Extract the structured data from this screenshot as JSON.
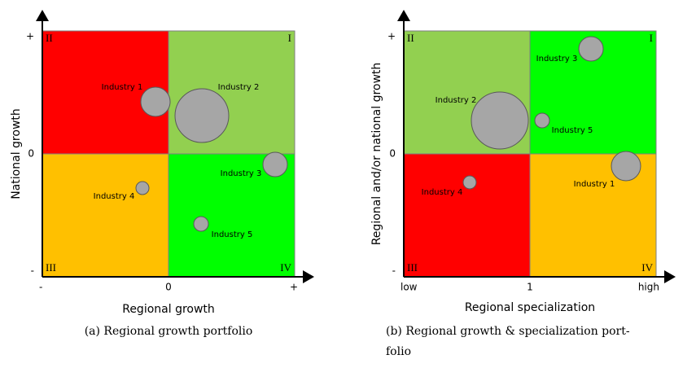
{
  "panels": [
    {
      "quadrants": [
        "II",
        "I",
        "III",
        "IV"
      ],
      "y_ticks": [
        "+",
        "0",
        "-"
      ],
      "x_ticks": [
        "-",
        "0",
        "+"
      ],
      "x_label": "Regional growth",
      "y_label": "National growth",
      "bubbles": [
        {
          "label": "Industry 1"
        },
        {
          "label": "Industry 2"
        },
        {
          "label": "Industry 3"
        },
        {
          "label": "Industry 4"
        },
        {
          "label": "Industry 5"
        }
      ],
      "caption": [
        "(a) Regional growth portfolio"
      ]
    },
    {
      "quadrants": [
        "II",
        "I",
        "III",
        "IV"
      ],
      "y_ticks": [
        "+",
        "0",
        "-"
      ],
      "x_ticks": [
        "low",
        "1",
        "high"
      ],
      "x_label": "Regional specialization",
      "y_label": "Regional and/or national growth",
      "bubbles": [
        {
          "label": "Industry 1"
        },
        {
          "label": "Industry 2"
        },
        {
          "label": "Industry 3"
        },
        {
          "label": "Industry 4"
        },
        {
          "label": "Industry 5"
        }
      ],
      "caption": [
        "(b) Regional growth & specialization port-",
        "folio"
      ]
    }
  ]
}
